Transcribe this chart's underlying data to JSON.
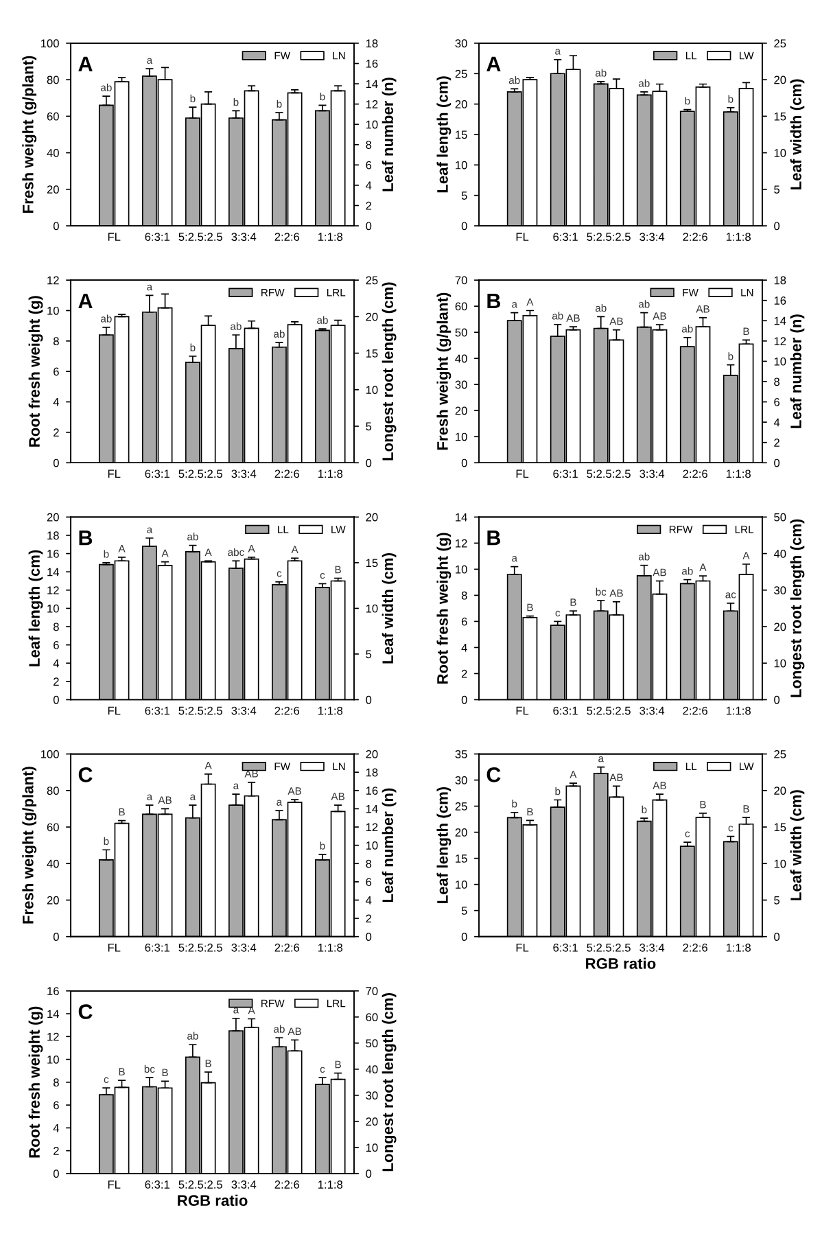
{
  "chart_data": [
    {
      "type": "bar",
      "title": "A",
      "ylabel": "Fresh weight (g/plant)",
      "y2label": "Leaf number (n)",
      "categories": [
        "FL",
        "6:3:1",
        "5:2.5:2.5",
        "3:3:4",
        "2:2:6",
        "1:1:8"
      ],
      "ylim": [
        0,
        100
      ],
      "yticks": [
        0,
        20,
        40,
        60,
        80,
        100
      ],
      "y2lim": [
        0,
        18
      ],
      "y2ticks": [
        0,
        2,
        4,
        6,
        8,
        10,
        12,
        14,
        16,
        18
      ],
      "legend": "top right",
      "series": [
        {
          "name": "FW",
          "color": "#a8a8a8",
          "values": [
            66,
            82,
            59,
            59,
            58,
            63
          ],
          "errors": [
            [
              66,
              71
            ],
            [
              82,
              86
            ],
            [
              59,
              65
            ],
            [
              59,
              63
            ],
            [
              58,
              62
            ],
            [
              63,
              66
            ]
          ],
          "value_labels": [
            "ab",
            "a",
            "b",
            "b",
            "b",
            "b"
          ]
        },
        {
          "name": "LN",
          "color": "#ffffff",
          "axis": "y2",
          "values": [
            14.2,
            14.4,
            12.0,
            13.3,
            13.1,
            13.3
          ],
          "errors": [
            [
              14.2,
              14.6
            ],
            [
              14.4,
              15.6
            ],
            [
              12.0,
              13.2
            ],
            [
              13.3,
              13.8
            ],
            [
              13.1,
              13.4
            ],
            [
              13.3,
              13.8
            ]
          ]
        }
      ]
    },
    {
      "type": "bar",
      "title": "A",
      "ylabel": "Leaf length (cm)",
      "y2label": "Leaf width (cm)",
      "categories": [
        "FL",
        "6:3:1",
        "5:2.5:2.5",
        "3:3:4",
        "2:2:6",
        "1:1:8"
      ],
      "ylim": [
        0,
        30
      ],
      "yticks": [
        0,
        5,
        10,
        15,
        20,
        25,
        30
      ],
      "y2lim": [
        0,
        25
      ],
      "y2ticks": [
        0,
        5,
        10,
        15,
        20,
        25
      ],
      "legend": "top right",
      "series": [
        {
          "name": "LL",
          "color": "#a8a8a8",
          "values": [
            22.0,
            25.0,
            23.3,
            21.5,
            18.8,
            18.7
          ],
          "errors": [
            [
              22.0,
              22.5
            ],
            [
              25.0,
              27.3
            ],
            [
              23.3,
              23.7
            ],
            [
              21.5,
              22.0
            ],
            [
              18.8,
              19.1
            ],
            [
              18.7,
              19.4
            ]
          ],
          "value_labels": [
            "ab",
            "a",
            "ab",
            "ab",
            "b",
            "b"
          ]
        },
        {
          "name": "LW",
          "color": "#ffffff",
          "axis": "y2",
          "values": [
            20.0,
            21.4,
            18.8,
            18.4,
            19.0,
            18.8
          ],
          "errors": [
            [
              20.0,
              20.3
            ],
            [
              21.4,
              23.3
            ],
            [
              18.8,
              20.1
            ],
            [
              18.4,
              19.4
            ],
            [
              19.0,
              19.4
            ],
            [
              18.8,
              19.6
            ]
          ]
        }
      ]
    },
    {
      "type": "bar",
      "title": "A",
      "ylabel": "Root fresh weight (g)",
      "y2label": "Longest root length (cm)",
      "categories": [
        "FL",
        "6:3:1",
        "5:2.5:2.5",
        "3:3:4",
        "2:2:6",
        "1:1:8"
      ],
      "ylim": [
        0,
        12
      ],
      "yticks": [
        0,
        2,
        4,
        6,
        8,
        10,
        12
      ],
      "y2lim": [
        0,
        25
      ],
      "y2ticks": [
        0,
        5,
        10,
        15,
        20,
        25
      ],
      "legend": "top right",
      "series": [
        {
          "name": "RFW",
          "color": "#a8a8a8",
          "values": [
            8.4,
            9.9,
            6.6,
            7.5,
            7.6,
            8.7
          ],
          "errors": [
            [
              8.4,
              8.9
            ],
            [
              9.9,
              11.0
            ],
            [
              6.6,
              7.0
            ],
            [
              7.5,
              8.4
            ],
            [
              7.6,
              7.9
            ],
            [
              8.7,
              8.8
            ]
          ],
          "value_labels": [
            "ab",
            "a",
            "b",
            "ab",
            "ab",
            "ab"
          ]
        },
        {
          "name": "LRL",
          "color": "#ffffff",
          "axis": "y2",
          "values": [
            20.0,
            21.2,
            18.8,
            18.4,
            18.9,
            18.8
          ],
          "errors": [
            [
              20.0,
              20.3
            ],
            [
              21.2,
              23.1
            ],
            [
              18.8,
              20.1
            ],
            [
              18.4,
              19.4
            ],
            [
              18.9,
              19.3
            ],
            [
              18.8,
              19.5
            ]
          ]
        }
      ]
    },
    {
      "type": "bar",
      "title": "B",
      "ylabel": "Fresh weight (g/plant)",
      "y2label": "Leaf number (n)",
      "categories": [
        "FL",
        "6:3:1",
        "5:2.5:2.5",
        "3:3:4",
        "2:2:6",
        "1:1:8"
      ],
      "ylim": [
        0,
        70
      ],
      "yticks": [
        0,
        10,
        20,
        30,
        40,
        50,
        60,
        70
      ],
      "y2lim": [
        0,
        18
      ],
      "y2ticks": [
        0,
        2,
        4,
        6,
        8,
        10,
        12,
        14,
        16,
        18
      ],
      "legend": "top right",
      "series": [
        {
          "name": "FW",
          "color": "#a8a8a8",
          "values": [
            54.5,
            48.5,
            51.5,
            52,
            44.5,
            33.5
          ],
          "errors": [
            [
              54.5,
              57.5
            ],
            [
              48.5,
              53
            ],
            [
              51.5,
              56
            ],
            [
              52,
              57.5
            ],
            [
              44.5,
              48
            ],
            [
              33.5,
              37.5
            ]
          ],
          "value_labels": [
            "a",
            "ab",
            "ab",
            "ab",
            "ab",
            "b"
          ]
        },
        {
          "name": "LN",
          "color": "#ffffff",
          "axis": "y2",
          "values": [
            14.5,
            13.1,
            12.1,
            13.1,
            13.4,
            11.7
          ],
          "errors": [
            [
              14.5,
              15.0
            ],
            [
              13.1,
              13.4
            ],
            [
              12.1,
              13.1
            ],
            [
              13.1,
              13.6
            ],
            [
              13.4,
              14.3
            ],
            [
              11.7,
              12.1
            ]
          ],
          "value_labels": [
            "A",
            "AB",
            "AB",
            "AB",
            "AB",
            "B"
          ]
        }
      ]
    },
    {
      "type": "bar",
      "title": "B",
      "ylabel": "Leaf length (cm)",
      "y2label": "Leaf width (cm)",
      "categories": [
        "FL",
        "6:3:1",
        "5:2.5:2.5",
        "3:3:4",
        "2:2:6",
        "1:1:8"
      ],
      "ylim": [
        0,
        20
      ],
      "yticks": [
        0,
        2,
        4,
        6,
        8,
        10,
        12,
        14,
        16,
        18,
        20
      ],
      "y2lim": [
        0,
        20
      ],
      "y2ticks": [
        0,
        5,
        10,
        15,
        20
      ],
      "legend": "top right",
      "series": [
        {
          "name": "LL",
          "color": "#a8a8a8",
          "values": [
            14.8,
            16.8,
            16.2,
            14.4,
            12.6,
            12.3
          ],
          "errors": [
            [
              14.8,
              15.0
            ],
            [
              16.8,
              17.7
            ],
            [
              16.2,
              16.9
            ],
            [
              14.4,
              15.2
            ],
            [
              12.6,
              12.9
            ],
            [
              12.3,
              12.7
            ]
          ],
          "value_labels": [
            "b",
            "a",
            "ab",
            "abc",
            "c",
            "c"
          ]
        },
        {
          "name": "LW",
          "color": "#ffffff",
          "axis": "y2",
          "values": [
            15.2,
            14.7,
            15.1,
            15.4,
            15.2,
            13.0
          ],
          "errors": [
            [
              15.2,
              15.6
            ],
            [
              14.7,
              15.1
            ],
            [
              15.1,
              15.2
            ],
            [
              15.4,
              15.6
            ],
            [
              15.2,
              15.5
            ],
            [
              13.0,
              13.3
            ]
          ],
          "value_labels": [
            "A",
            "A",
            "A",
            "A",
            "A",
            "B"
          ]
        }
      ]
    },
    {
      "type": "bar",
      "title": "B",
      "ylabel": "Root fresh weight (g)",
      "y2label": "Longest root length (cm)",
      "categories": [
        "FL",
        "6:3:1",
        "5:2.5:2.5",
        "3:3:4",
        "2:2:6",
        "1:1:8"
      ],
      "ylim": [
        0,
        14
      ],
      "yticks": [
        0,
        2,
        4,
        6,
        8,
        10,
        12,
        14
      ],
      "y2lim": [
        0,
        50
      ],
      "y2ticks": [
        0,
        10,
        20,
        30,
        40,
        50
      ],
      "legend": "top right",
      "series": [
        {
          "name": "RFW",
          "color": "#a8a8a8",
          "values": [
            9.6,
            5.7,
            6.8,
            9.5,
            8.9,
            6.8
          ],
          "errors": [
            [
              9.6,
              10.2
            ],
            [
              5.7,
              6.0
            ],
            [
              6.8,
              7.6
            ],
            [
              9.5,
              10.3
            ],
            [
              8.9,
              9.2
            ],
            [
              6.8,
              7.4
            ]
          ],
          "value_labels": [
            "a",
            "c",
            "bc",
            "ab",
            "ab",
            "ac"
          ]
        },
        {
          "name": "LRL",
          "color": "#ffffff",
          "axis": "y2",
          "values": [
            22.5,
            23.2,
            23.2,
            28.9,
            32.5,
            34.3
          ],
          "errors": [
            [
              22.5,
              22.9
            ],
            [
              23.2,
              24.3
            ],
            [
              23.2,
              26.8
            ],
            [
              28.9,
              32.5
            ],
            [
              32.5,
              33.9
            ],
            [
              34.3,
              37.1
            ]
          ],
          "value_labels": [
            "B",
            "B",
            "AB",
            "AB",
            "A",
            "A"
          ]
        }
      ]
    },
    {
      "type": "bar",
      "title": "C",
      "ylabel": "Fresh weight (g/plant)",
      "y2label": "Leaf number (n)",
      "categories": [
        "FL",
        "6:3:1",
        "5:2.5:2.5",
        "3:3:4",
        "2:2:6",
        "1:1:8"
      ],
      "ylim": [
        0,
        100
      ],
      "yticks": [
        0,
        20,
        40,
        60,
        80,
        100
      ],
      "y2lim": [
        0,
        20
      ],
      "y2ticks": [
        0,
        2,
        4,
        6,
        8,
        10,
        12,
        14,
        16,
        18,
        20
      ],
      "legend": "top right",
      "series": [
        {
          "name": "FW",
          "color": "#a8a8a8",
          "values": [
            42,
            67,
            65,
            72,
            64,
            42
          ],
          "errors": [
            [
              42,
              47.5
            ],
            [
              67,
              72
            ],
            [
              65,
              72
            ],
            [
              72,
              78
            ],
            [
              64,
              69
            ],
            [
              42,
              45
            ]
          ],
          "value_labels": [
            "b",
            "a",
            "a",
            "a",
            "a",
            "b"
          ]
        },
        {
          "name": "LN",
          "color": "#ffffff",
          "axis": "y2",
          "values": [
            12.4,
            13.4,
            16.7,
            15.4,
            14.7,
            13.7
          ],
          "errors": [
            [
              12.4,
              12.7
            ],
            [
              13.4,
              14.0
            ],
            [
              16.7,
              17.8
            ],
            [
              15.4,
              16.9
            ],
            [
              14.7,
              15.0
            ],
            [
              13.7,
              14.4
            ]
          ],
          "value_labels": [
            "B",
            "AB",
            "A",
            "AB",
            "AB",
            "AB"
          ]
        }
      ]
    },
    {
      "type": "bar",
      "title": "C",
      "ylabel": "Leaf length (cm)",
      "y2label": "Leaf width (cm)",
      "xlabel": "RGB ratio",
      "categories": [
        "FL",
        "6:3:1",
        "5:2.5:2.5",
        "3:3:4",
        "2:2:6",
        "1:1:8"
      ],
      "ylim": [
        0,
        35
      ],
      "yticks": [
        0,
        5,
        10,
        15,
        20,
        25,
        30,
        35
      ],
      "y2lim": [
        0,
        25
      ],
      "y2ticks": [
        0,
        5,
        10,
        15,
        20,
        25
      ],
      "legend": "top right",
      "series": [
        {
          "name": "LL",
          "color": "#a8a8a8",
          "values": [
            22.8,
            24.8,
            31.3,
            22.1,
            17.3,
            18.2
          ],
          "errors": [
            [
              22.8,
              23.8
            ],
            [
              24.8,
              26.2
            ],
            [
              31.3,
              32.5
            ],
            [
              22.1,
              22.7
            ],
            [
              17.3,
              18.1
            ],
            [
              18.2,
              19.2
            ]
          ],
          "value_labels": [
            "b",
            "b",
            "a",
            "b",
            "c",
            "c"
          ]
        },
        {
          "name": "LW",
          "color": "#ffffff",
          "axis": "y2",
          "values": [
            15.3,
            20.6,
            19.1,
            18.7,
            16.3,
            15.4
          ],
          "errors": [
            [
              15.3,
              15.9
            ],
            [
              20.6,
              21.0
            ],
            [
              19.1,
              20.6
            ],
            [
              18.7,
              19.5
            ],
            [
              16.3,
              16.9
            ],
            [
              15.4,
              16.3
            ]
          ],
          "value_labels": [
            "B",
            "A",
            "AB",
            "AB",
            "B",
            "B"
          ]
        }
      ]
    },
    {
      "type": "bar",
      "title": "C",
      "ylabel": "Root fresh weight (g)",
      "y2label": "Longest root length (cm)",
      "xlabel": "RGB ratio",
      "categories": [
        "FL",
        "6:3:1",
        "5:2.5:2.5",
        "3:3:4",
        "2:2:6",
        "1:1:8"
      ],
      "ylim": [
        0,
        16
      ],
      "yticks": [
        0,
        2,
        4,
        6,
        8,
        10,
        12,
        14,
        16
      ],
      "y2lim": [
        0,
        70
      ],
      "y2ticks": [
        0,
        10,
        20,
        30,
        40,
        50,
        60,
        70
      ],
      "legend": "top right",
      "series": [
        {
          "name": "RFW",
          "color": "#a8a8a8",
          "values": [
            6.9,
            7.6,
            10.2,
            12.5,
            11.1,
            7.8
          ],
          "errors": [
            [
              6.9,
              7.5
            ],
            [
              7.6,
              8.4
            ],
            [
              10.2,
              11.3
            ],
            [
              12.5,
              13.6
            ],
            [
              11.1,
              11.9
            ],
            [
              7.8,
              8.4
            ]
          ],
          "value_labels": [
            "c",
            "bc",
            "ab",
            "a",
            "ab",
            "c"
          ]
        },
        {
          "name": "LRL",
          "color": "#ffffff",
          "axis": "y2",
          "values": [
            33.0,
            32.8,
            34.8,
            56,
            47,
            36.1
          ],
          "errors": [
            [
              33.0,
              35.7
            ],
            [
              32.8,
              35.4
            ],
            [
              34.8,
              38.9
            ],
            [
              56,
              59.3
            ],
            [
              47,
              51.2
            ],
            [
              36.1,
              38.5
            ]
          ],
          "value_labels": [
            "B",
            "B",
            "B",
            "A",
            "AB",
            "B"
          ]
        }
      ]
    }
  ]
}
